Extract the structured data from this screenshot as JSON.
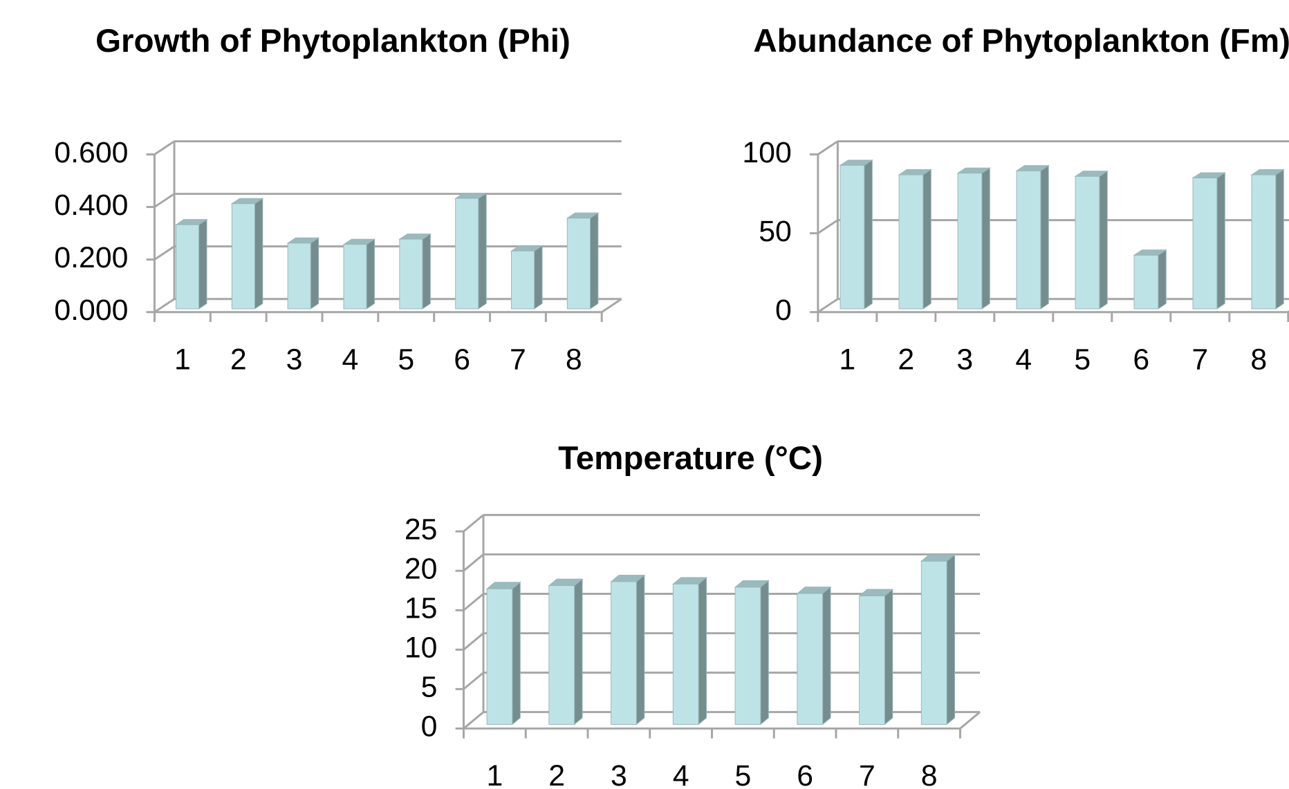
{
  "chart_data": [
    {
      "type": "bar3d",
      "title": "Growth of Phytoplankton (Phi)",
      "categories": [
        "1",
        "2",
        "3",
        "4",
        "5",
        "6",
        "7",
        "8"
      ],
      "values": [
        0.32,
        0.4,
        0.25,
        0.245,
        0.265,
        0.42,
        0.22,
        0.345
      ],
      "color": "#bde3e6",
      "ylim": [
        0,
        0.6
      ],
      "yticks": [
        {
          "value": 0,
          "label": "0.000"
        },
        {
          "value": 0.2,
          "label": "0.200"
        },
        {
          "value": 0.4,
          "label": "0.400"
        },
        {
          "value": 0.6,
          "label": "0.600"
        }
      ],
      "grid": true
    },
    {
      "type": "bar3d",
      "title": "Abundance of Phytoplankton (Fm)",
      "categories": [
        "1",
        "2",
        "3",
        "4",
        "5",
        "6",
        "7",
        "8"
      ],
      "values": [
        91,
        85,
        86,
        87.5,
        84,
        34,
        83,
        85
      ],
      "color": "#bde3e6",
      "ylim": [
        0,
        100
      ],
      "yticks": [
        0,
        50,
        100
      ],
      "grid": true
    },
    {
      "type": "bar3d",
      "title": "Temperature (°C)",
      "categories": [
        "1",
        "2",
        "3",
        "4",
        "5",
        "6",
        "7",
        "8"
      ],
      "values": [
        17.2,
        17.6,
        18.1,
        17.8,
        17.4,
        16.6,
        16.3,
        20.7
      ],
      "color": "#bde3e6",
      "ylim": [
        0,
        25
      ],
      "yticks": [
        0,
        5,
        10,
        15,
        20,
        25
      ],
      "grid": true
    }
  ]
}
